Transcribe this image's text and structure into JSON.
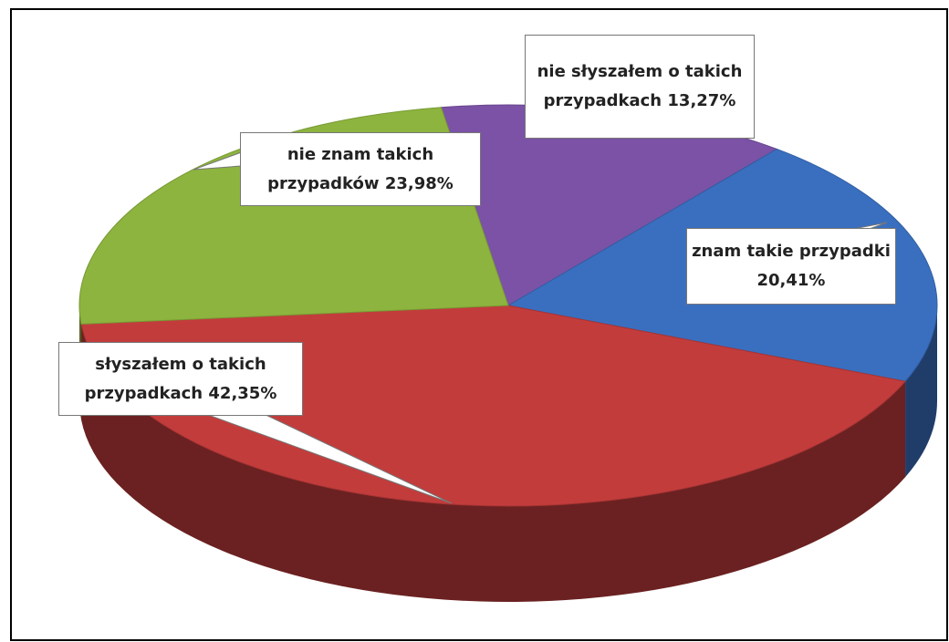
{
  "chart_data": {
    "type": "pie",
    "categories": [
      "nie słyszałem o takich przypadkach",
      "znam takie przypadki",
      "słyszałem o takich przypadkach",
      "nie znam takich przypadków"
    ],
    "values": [
      13.27,
      20.41,
      42.35,
      23.98
    ],
    "value_labels": [
      "13,27%",
      "20,41%",
      "42,35%",
      "23,98%"
    ],
    "colors": [
      "#7b52a6",
      "#3a6fbf",
      "#c33c3c",
      "#8db43e"
    ]
  }
}
